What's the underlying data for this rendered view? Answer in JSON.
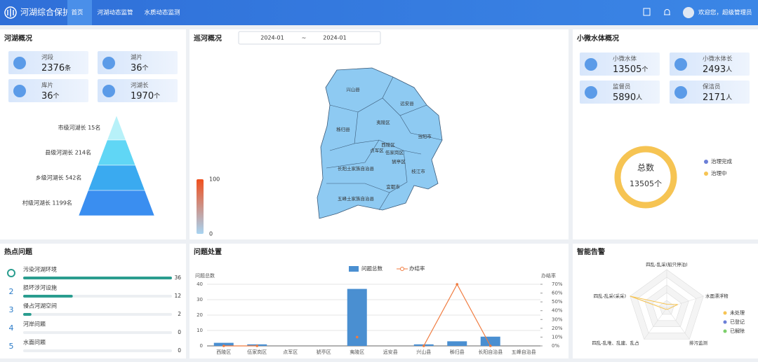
{
  "nav": {
    "brand": "河湖综合保护",
    "tabs": [
      "首页",
      "河湖动态监管",
      "水质动态监测"
    ],
    "user": "欢迎您，超级管理员"
  },
  "overview": {
    "title": "河湖概况",
    "stats": [
      {
        "label": "河段",
        "value": 2376,
        "unit": "条"
      },
      {
        "label": "湖片",
        "value": 36,
        "unit": "个"
      },
      {
        "label": "库片",
        "value": 36,
        "unit": "个"
      },
      {
        "label": "河湖长",
        "value": 1970,
        "unit": "个"
      }
    ],
    "pyramid": [
      "市级河湖长 15名",
      "县级河湖长 214名",
      "乡级河湖长 542名",
      "村级河湖长 1199名"
    ]
  },
  "patrol": {
    "title": "巡河概况",
    "date_from": "2024-01",
    "separator": "~",
    "date_to": "2024-01",
    "regions": [
      "兴山县",
      "远安县",
      "秭归县",
      "夷陵区",
      "当阳市",
      "西陵区",
      "点军区",
      "伍家岗区",
      "猇亭区",
      "长阳土家族自治县",
      "枝江市",
      "宜都市",
      "五峰土家族自治县"
    ],
    "visual_map": {
      "max": 100,
      "min": 0
    }
  },
  "small_water": {
    "title": "小微水体概况",
    "stats": [
      {
        "label": "小微水体",
        "value": 13505,
        "unit": "个"
      },
      {
        "label": "小微水体长",
        "value": 2493,
        "unit": "人"
      },
      {
        "label": "监督员",
        "value": 5890,
        "unit": "人"
      },
      {
        "label": "保洁员",
        "value": 2171,
        "unit": "人"
      }
    ],
    "donut": {
      "center_label": "总数",
      "total": 13505,
      "unit": "个",
      "series": [
        {
          "name": "治理完成",
          "color": "#6b7fd7",
          "value": 0
        },
        {
          "name": "治理中",
          "color": "#f6c453",
          "value": 13505
        }
      ]
    }
  },
  "hot_issues": {
    "title": "热点问题",
    "ranks": [
      null,
      2,
      3,
      4,
      5
    ],
    "items": [
      {
        "name": "污染河湖环境",
        "value": 36
      },
      {
        "name": "损坏涉河设施",
        "value": 12
      },
      {
        "name": "侵占河湖空间",
        "value": 2
      },
      {
        "name": "河岸问题",
        "value": 0
      },
      {
        "name": "水面问题",
        "value": 0
      }
    ]
  },
  "issue_handling": {
    "title": "问题处置",
    "y_title": "问题总数",
    "y2_title": "办结率",
    "categories": [
      "西陵区",
      "伍家岗区",
      "点军区",
      "猇亭区",
      "夷陵区",
      "远安县",
      "兴山县",
      "秭归县",
      "长阳自治县",
      "五峰自治县"
    ],
    "series": [
      {
        "name": "问题总数",
        "color": "#4a8fd1",
        "values": [
          2,
          1,
          0,
          0,
          37,
          0,
          1,
          3,
          6,
          0
        ]
      },
      {
        "name": "办结率",
        "color": "#f07b3f",
        "axis": "y2",
        "values": [
          0,
          0,
          null,
          null,
          10,
          null,
          0,
          70,
          0,
          null
        ]
      }
    ],
    "ylim": [
      0,
      40
    ],
    "yticks": [
      0,
      10,
      20,
      30,
      40
    ],
    "y2lim": [
      0,
      70
    ],
    "y2ticks": [
      {
        "value": 0,
        "label": "0%"
      },
      {
        "value": 10,
        "label": "10%"
      },
      {
        "value": 20,
        "label": "20%"
      },
      {
        "value": 30,
        "label": "30%"
      },
      {
        "value": 40,
        "label": "40%"
      },
      {
        "value": 50,
        "label": "50%"
      },
      {
        "value": 60,
        "label": "60%"
      },
      {
        "value": 70,
        "label": "70%"
      }
    ]
  },
  "alerts": {
    "title": "智能告警",
    "indicators": [
      "四乱-乱采(船只停泊)",
      "水面漂浮物",
      "排污监测",
      "四乱-乱堆、乱建、乱占",
      "四乱-乱采(采采)"
    ],
    "rlim": [
      0,
      5
    ],
    "series": [
      {
        "name": "未处理",
        "color": "#f6c453",
        "values": [
          0.5,
          1.5,
          0.2,
          0.2,
          5
        ]
      },
      {
        "name": "已登记",
        "color": "#6b7fd7",
        "values": [
          0,
          0,
          0,
          0,
          0
        ]
      },
      {
        "name": "已解除",
        "color": "#7ccf6b",
        "values": [
          0,
          0,
          0,
          0,
          0
        ]
      }
    ]
  }
}
